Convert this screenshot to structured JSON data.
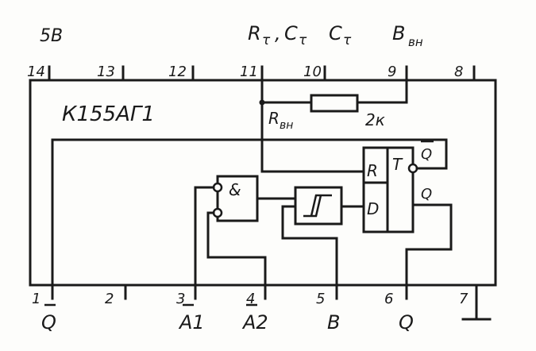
{
  "chip": {
    "name": "К155АГ1",
    "supply": "5В",
    "resistor_label": "R",
    "resistor_sub": "вн",
    "resistor_value": "2к"
  },
  "top_pins": [
    {
      "num": "14",
      "signal": ""
    },
    {
      "num": "13",
      "signal": ""
    },
    {
      "num": "12",
      "signal": ""
    },
    {
      "num": "11",
      "signal": "R"
    },
    {
      "num": "10",
      "signal": "C"
    },
    {
      "num": "9",
      "signal": "B"
    },
    {
      "num": "8",
      "signal": ""
    }
  ],
  "top_signals": {
    "rc": "R",
    "rc_sub": "τ",
    "comma": ",",
    "cc": "C",
    "cc_sub": "τ",
    "c10": "C",
    "c10_sub": "τ",
    "b": "B",
    "b_sub": "вн"
  },
  "bottom_pins": [
    {
      "num": "1",
      "signal": "Q"
    },
    {
      "num": "2",
      "signal": ""
    },
    {
      "num": "3",
      "signal": "A1"
    },
    {
      "num": "4",
      "signal": "A2"
    },
    {
      "num": "5",
      "signal": "B"
    },
    {
      "num": "6",
      "signal": "Q"
    },
    {
      "num": "7",
      "signal": ""
    }
  ],
  "gates": {
    "and_label": "&",
    "trigger_label": "R",
    "t_label": "T",
    "r_label": "R",
    "d_label": "D",
    "q_out": "Q",
    "q_bar": "Q"
  }
}
